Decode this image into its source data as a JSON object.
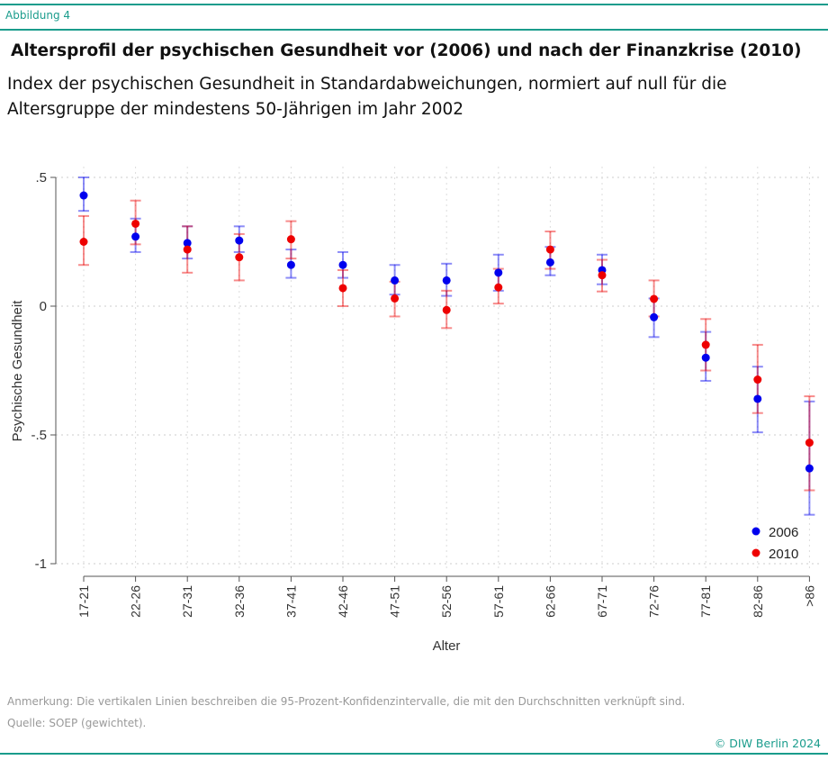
{
  "figure_label": "Abbildung 4",
  "title": "Altersprofil der psychischen Gesundheit vor (2006) und nach der Finanzkrise (2010)",
  "subtitle": "Index der psychischen Gesundheit in Standardabweichungen, normiert auf null für die Altersgruppe der mindestens 50-Jährigen im Jahr 2002",
  "note": "Anmerkung: Die vertikalen Linien beschreiben die 95-Prozent-Konfidenzintervalle, die mit den Durchschnitten verknüpft sind.",
  "source": "Quelle: SOEP (gewichtet).",
  "copyright": "© DIW Berlin 2024",
  "colors": {
    "accent": "#1a9c8c",
    "series_2006": "#0000ee",
    "series_2010": "#ee0000"
  },
  "chart_data": {
    "type": "scatter",
    "xlabel": "Alter",
    "ylabel": "Psychische Gesundheit",
    "ylim": [
      -1,
      0.5
    ],
    "yticks": [
      0.5,
      0,
      -0.5,
      -1
    ],
    "ytick_labels": [
      ".5",
      "0",
      "-.5",
      "-1"
    ],
    "grid": true,
    "legend_placement": "bottom-right",
    "error_bars": "95% confidence intervals",
    "categories": [
      "17-21",
      "22-26",
      "27-31",
      "32-36",
      "37-41",
      "42-46",
      "47-51",
      "52-56",
      "57-61",
      "62-66",
      "67-71",
      "72-76",
      "77-81",
      "82-86",
      ">86"
    ],
    "series": [
      {
        "name": "2006",
        "color": "#0000ee",
        "values": [
          0.43,
          0.27,
          0.245,
          0.255,
          0.16,
          0.16,
          0.1,
          0.1,
          0.13,
          0.17,
          0.14,
          -0.043,
          -0.2,
          -0.36,
          -0.63
        ],
        "ci_low": [
          0.37,
          0.21,
          0.185,
          0.21,
          0.11,
          0.11,
          0.045,
          0.04,
          0.06,
          0.12,
          0.085,
          -0.12,
          -0.29,
          -0.49,
          -0.81
        ],
        "ci_high": [
          0.5,
          0.34,
          0.31,
          0.31,
          0.22,
          0.21,
          0.16,
          0.165,
          0.2,
          0.23,
          0.2,
          0.03,
          -0.1,
          -0.235,
          -0.37
        ]
      },
      {
        "name": "2010",
        "color": "#ee0000",
        "values": [
          0.25,
          0.32,
          0.22,
          0.19,
          0.26,
          0.07,
          0.03,
          -0.015,
          0.073,
          0.22,
          0.12,
          0.028,
          -0.15,
          -0.285,
          -0.53
        ],
        "ci_low": [
          0.16,
          0.24,
          0.13,
          0.1,
          0.185,
          0.0,
          -0.04,
          -0.085,
          0.01,
          0.145,
          0.057,
          -0.04,
          -0.25,
          -0.415,
          -0.715
        ],
        "ci_high": [
          0.35,
          0.41,
          0.31,
          0.28,
          0.33,
          0.14,
          0.095,
          0.06,
          0.145,
          0.29,
          0.18,
          0.1,
          -0.05,
          -0.15,
          -0.35
        ]
      }
    ]
  }
}
